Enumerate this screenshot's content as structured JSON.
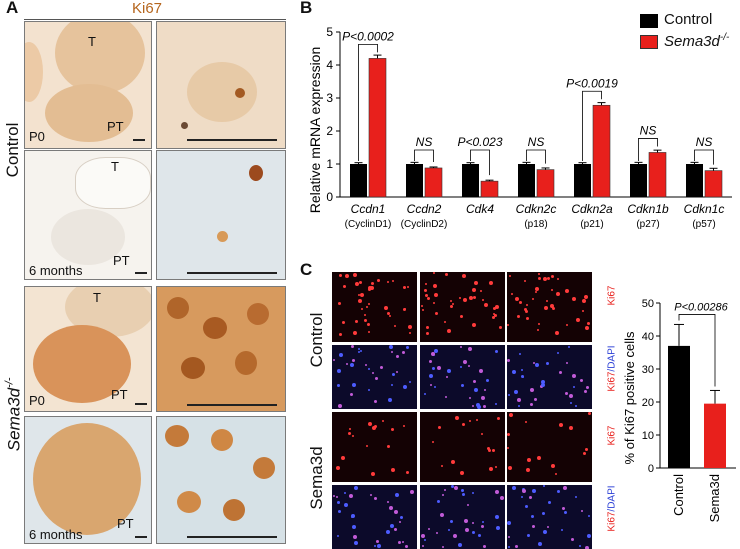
{
  "panel_a": {
    "letter": "A",
    "marker_title": "Ki67",
    "row_label_control": "Control",
    "row_label_mutant": "Sema3d",
    "row_label_mutant_sup": "-/-",
    "labels": {
      "t": "T",
      "pt": "PT",
      "p0": "P0",
      "six_months": "6 months"
    }
  },
  "panel_b": {
    "letter": "B",
    "legend_control": "Control",
    "legend_mutant": "Sema3d",
    "legend_mutant_sup": "-/-"
  },
  "panel_c": {
    "letter": "C",
    "row_label_control": "Control",
    "row_label_mutant": "Sema3d",
    "stain_ki67": "Ki67",
    "stain_ki67_dapi_a": "Ki67",
    "stain_ki67_dapi_b": "/DAPI"
  },
  "colors": {
    "control": "#000000",
    "mutant": "#e8201c",
    "ki67_title": "#b5651d",
    "fluor_red": "#e8201c",
    "fluor_blue": "#2b3fd6"
  },
  "chart_data": [
    {
      "type": "bar",
      "ylabel": "Relative mRNA expression",
      "ylim": [
        0,
        5
      ],
      "yticks": [
        0,
        1,
        2,
        3,
        4,
        5
      ],
      "categories": [
        {
          "gene": "Ccdn1",
          "protein": "(CyclinD1)"
        },
        {
          "gene": "Ccdn2",
          "protein": "(CyclinD2)"
        },
        {
          "gene": "Cdk4",
          "protein": ""
        },
        {
          "gene": "Cdkn2c",
          "protein": "(p18)"
        },
        {
          "gene": "Cdkn2a",
          "protein": "(p21)"
        },
        {
          "gene": "Cdkn1b",
          "protein": "(p27)"
        },
        {
          "gene": "Cdkn1c",
          "protein": "(p57)"
        }
      ],
      "series": [
        {
          "name": "Control",
          "values": [
            1.0,
            1.0,
            1.0,
            1.0,
            1.0,
            1.0,
            1.0
          ],
          "errors": [
            0.04,
            0.05,
            0.04,
            0.05,
            0.04,
            0.05,
            0.05
          ]
        },
        {
          "name": "Sema3d-/-",
          "values": [
            4.2,
            0.88,
            0.48,
            0.83,
            2.78,
            1.35,
            0.8
          ],
          "errors": [
            0.1,
            0.03,
            0.03,
            0.05,
            0.08,
            0.07,
            0.07
          ]
        }
      ],
      "annotations": [
        "P<0.0002",
        "NS",
        "P<0.023",
        "NS",
        "P<0.0019",
        "NS",
        "NS"
      ],
      "legend": "top-right"
    },
    {
      "type": "bar",
      "ylabel": "% of Ki67 positive cells",
      "ylim": [
        0,
        50
      ],
      "yticks": [
        0,
        10,
        20,
        30,
        40,
        50
      ],
      "categories": [
        "Control",
        "Sema3d"
      ],
      "values": [
        37,
        19.5
      ],
      "errors": [
        6.5,
        4
      ],
      "annotation": "P<0.00286"
    }
  ]
}
